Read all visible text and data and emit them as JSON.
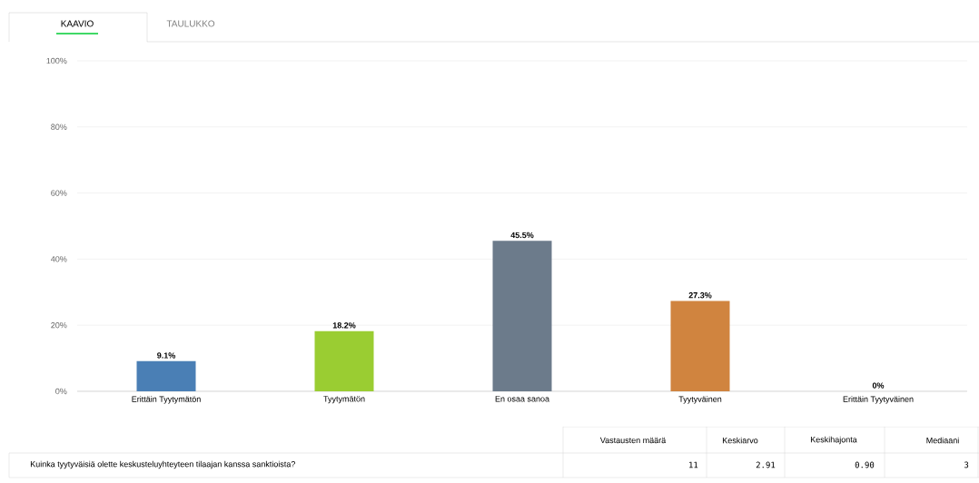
{
  "chart_data": {
    "type": "bar",
    "categories": [
      "Erittäin Tyytymätön",
      "Tyytymätön",
      "En osaa sanoa",
      "Tyytyväinen",
      "Erittäin Tyytyväinen"
    ],
    "values": [
      9.1,
      18.2,
      45.5,
      27.3,
      0
    ],
    "colors": [
      "#4a7fb5",
      "#9acd32",
      "#6c7b8b",
      "#d0843f",
      "#9e9e9e"
    ],
    "value_labels": [
      "9.1%",
      "18.2%",
      "45.5%",
      "27.3%",
      "0%"
    ],
    "ylim": [
      0,
      100
    ],
    "yticks": [
      {
        "value": 0,
        "label": "0%"
      },
      {
        "value": 20,
        "label": "20%"
      },
      {
        "value": 40,
        "label": "40%"
      },
      {
        "value": 60,
        "label": "60%"
      },
      {
        "value": 80,
        "label": "80%"
      },
      {
        "value": 100,
        "label": "100%"
      }
    ],
    "grid": "y",
    "annotations": [
      "KAAVIO",
      "TAULUKKO",
      "Vastausten määrä",
      "Keskiarvo",
      "Keskihajonta",
      "Mediaani",
      "Kuinka tyytyväisiä olette keskusteluyhteyteen tilaajan kanssa sanktioista?",
      "11",
      "2.91",
      "0.90",
      "3"
    ]
  }
}
